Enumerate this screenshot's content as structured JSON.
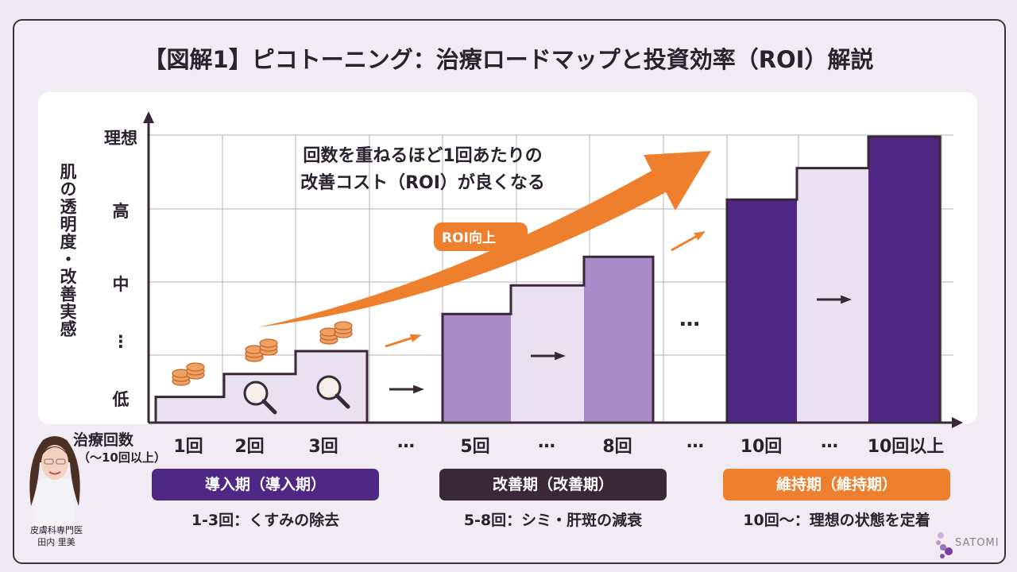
{
  "title": "【図解1】ピコトーニング：治療ロードマップと投資効率（ROI）解説",
  "colors": {
    "dark_purple": "#4f2885",
    "mid_purple": "#a98bc9",
    "light_purple": "#e9e1f1",
    "orange": "#ee7f2d",
    "plum": "#3a2838",
    "frame": "#3d3145"
  },
  "chart_data": {
    "type": "bar",
    "ylabel": "肌の透明度・改善実感",
    "xlabel": "治療回数",
    "xlabel_sub": "（〜10回以上）",
    "y_ticks": [
      "低",
      "⋮",
      "中",
      "高",
      "理想"
    ],
    "x_labels": [
      "1回",
      "2回",
      "3回",
      "…",
      "5回",
      "…",
      "8回",
      "…",
      "10回",
      "…",
      "10回以上"
    ],
    "steps": [
      {
        "label": "1回",
        "level": 0.09,
        "shade": "light"
      },
      {
        "label": "2回",
        "level": 0.17,
        "shade": "light"
      },
      {
        "label": "3回",
        "level": 0.25,
        "shade": "light"
      },
      {
        "label": "5回",
        "level": 0.38,
        "shade": "mid"
      },
      {
        "label": "…",
        "level": 0.48,
        "shade": "light"
      },
      {
        "label": "8回",
        "level": 0.58,
        "shade": "mid"
      },
      {
        "label": "10回",
        "level": 0.78,
        "shade": "dark"
      },
      {
        "label": "…",
        "level": 0.89,
        "shade": "light"
      },
      {
        "label": "10回以上",
        "level": 1.0,
        "shade": "dark"
      }
    ],
    "grid": true
  },
  "annotation": {
    "line1": "回数を重ねるほど1回あたりの",
    "line2": "改善コスト（ROI）が良くなる",
    "arrow_label": "ROI向上"
  },
  "phases": [
    {
      "label": "導入期（導入期）",
      "desc": "1-3回：くすみの除去"
    },
    {
      "label": "改善期（改善期）",
      "desc": "5-8回：シミ・肝斑の減衰"
    },
    {
      "label": "維持期（維持期）",
      "desc": "10回〜：理想の状態を定着"
    }
  ],
  "doctor": {
    "title": "皮膚科専門医",
    "name": "田内 里美"
  },
  "brand": "SATOMI"
}
